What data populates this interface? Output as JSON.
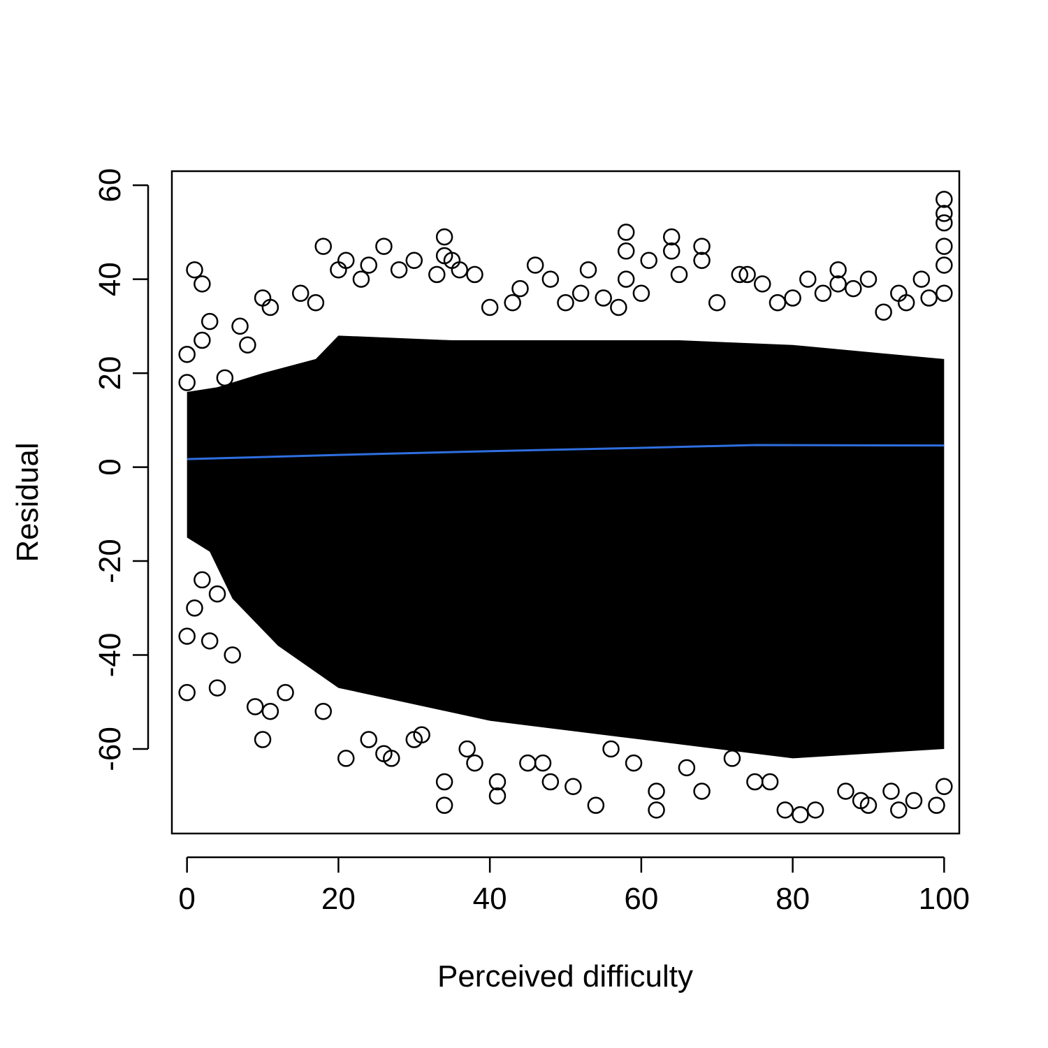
{
  "chart_data": {
    "type": "scatter",
    "title": "",
    "xlabel": "Perceived difficulty",
    "ylabel": "Residual",
    "xlim": [
      -2,
      102
    ],
    "ylim": [
      -78,
      63
    ],
    "x_ticks": [
      0,
      20,
      40,
      60,
      80,
      100
    ],
    "y_ticks": [
      -60,
      -40,
      -20,
      0,
      20,
      40,
      60
    ],
    "x_tick_labels": [
      "0",
      "20",
      "40",
      "60",
      "80",
      "100"
    ],
    "y_tick_labels": [
      "-60",
      "-40",
      "-20",
      "0",
      "20",
      "40",
      "60"
    ],
    "grid": false,
    "legend": "none",
    "marker": "open-circle",
    "colors": {
      "points": "#000000",
      "trend": "#2f6fe0"
    },
    "series": [
      {
        "type": "scatter",
        "points": [
          [
            0,
            24
          ],
          [
            0,
            -48
          ],
          [
            0,
            18
          ],
          [
            0,
            -36
          ],
          [
            1,
            42
          ],
          [
            1,
            -30
          ],
          [
            2,
            39
          ],
          [
            2,
            27
          ],
          [
            2,
            -24
          ],
          [
            3,
            31
          ],
          [
            3,
            -37
          ],
          [
            4,
            -47
          ],
          [
            4,
            -27
          ],
          [
            5,
            19
          ],
          [
            6,
            -40
          ],
          [
            7,
            30
          ],
          [
            8,
            26
          ],
          [
            9,
            -51
          ],
          [
            10,
            36
          ],
          [
            10,
            -58
          ],
          [
            11,
            34
          ],
          [
            11,
            -52
          ],
          [
            13,
            -48
          ],
          [
            15,
            37
          ],
          [
            17,
            35
          ],
          [
            18,
            47
          ],
          [
            18,
            -52
          ],
          [
            20,
            42
          ],
          [
            21,
            44
          ],
          [
            21,
            -62
          ],
          [
            23,
            40
          ],
          [
            24,
            43
          ],
          [
            24,
            -58
          ],
          [
            26,
            47
          ],
          [
            26,
            -61
          ],
          [
            27,
            -62
          ],
          [
            28,
            42
          ],
          [
            30,
            44
          ],
          [
            30,
            -58
          ],
          [
            31,
            -57
          ],
          [
            33,
            41
          ],
          [
            34,
            49
          ],
          [
            34,
            45
          ],
          [
            34,
            -72
          ],
          [
            34,
            -67
          ],
          [
            35,
            44
          ],
          [
            36,
            42
          ],
          [
            37,
            -60
          ],
          [
            38,
            41
          ],
          [
            38,
            -63
          ],
          [
            40,
            34
          ],
          [
            41,
            -67
          ],
          [
            41,
            -70
          ],
          [
            43,
            35
          ],
          [
            44,
            38
          ],
          [
            45,
            -63
          ],
          [
            46,
            43
          ],
          [
            47,
            -63
          ],
          [
            48,
            40
          ],
          [
            48,
            -67
          ],
          [
            50,
            35
          ],
          [
            51,
            -68
          ],
          [
            52,
            37
          ],
          [
            53,
            42
          ],
          [
            54,
            -72
          ],
          [
            55,
            36
          ],
          [
            56,
            -60
          ],
          [
            57,
            34
          ],
          [
            58,
            50
          ],
          [
            58,
            46
          ],
          [
            58,
            40
          ],
          [
            59,
            -63
          ],
          [
            60,
            37
          ],
          [
            61,
            44
          ],
          [
            62,
            -69
          ],
          [
            62,
            -73
          ],
          [
            64,
            49
          ],
          [
            64,
            46
          ],
          [
            65,
            41
          ],
          [
            66,
            -64
          ],
          [
            68,
            47
          ],
          [
            68,
            44
          ],
          [
            68,
            -69
          ],
          [
            70,
            35
          ],
          [
            72,
            -62
          ],
          [
            73,
            41
          ],
          [
            74,
            41
          ],
          [
            75,
            -67
          ],
          [
            76,
            39
          ],
          [
            77,
            -67
          ],
          [
            78,
            35
          ],
          [
            79,
            -73
          ],
          [
            80,
            36
          ],
          [
            81,
            -74
          ],
          [
            82,
            40
          ],
          [
            83,
            -73
          ],
          [
            84,
            37
          ],
          [
            86,
            42
          ],
          [
            86,
            39
          ],
          [
            87,
            -69
          ],
          [
            88,
            38
          ],
          [
            89,
            -71
          ],
          [
            90,
            40
          ],
          [
            90,
            -72
          ],
          [
            92,
            33
          ],
          [
            93,
            -69
          ],
          [
            94,
            37
          ],
          [
            94,
            -73
          ],
          [
            95,
            35
          ],
          [
            96,
            -71
          ],
          [
            97,
            40
          ],
          [
            98,
            36
          ],
          [
            99,
            -72
          ],
          [
            100,
            57
          ],
          [
            100,
            54
          ],
          [
            100,
            52
          ],
          [
            100,
            47
          ],
          [
            100,
            43
          ],
          [
            100,
            -68
          ],
          [
            100,
            37
          ]
        ]
      },
      {
        "type": "line",
        "points": [
          [
            0,
            1.7
          ],
          [
            20,
            2.6
          ],
          [
            40,
            3.4
          ],
          [
            60,
            4.1
          ],
          [
            75,
            4.7
          ],
          [
            100,
            4.6
          ]
        ]
      }
    ]
  }
}
